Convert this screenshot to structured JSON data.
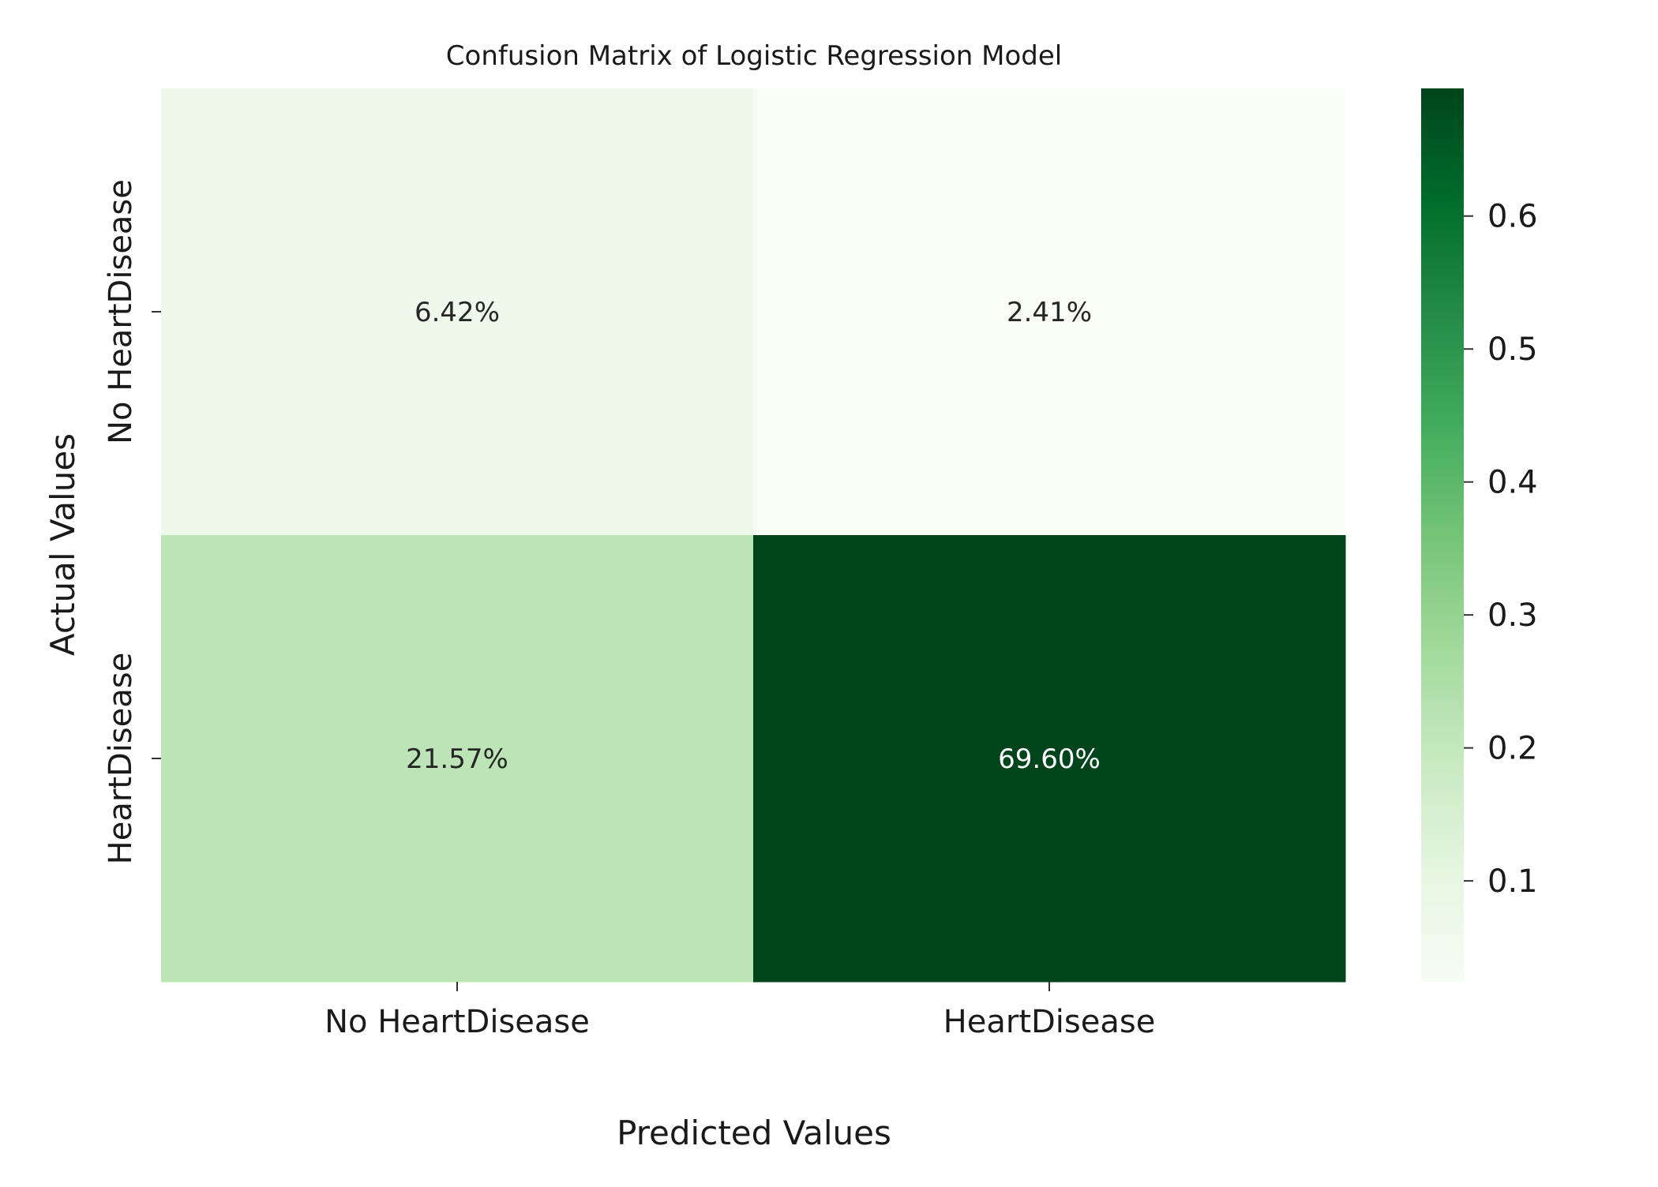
{
  "chart_data": {
    "type": "heatmap",
    "title": "Confusion Matrix of Logistic Regression Model",
    "xlabel": "Predicted Values",
    "ylabel": "Actual Values",
    "x_categories": [
      "No HeartDisease",
      "HeartDisease"
    ],
    "y_categories": [
      "No HeartDisease",
      "HeartDisease"
    ],
    "values": [
      [
        0.0642,
        0.0241
      ],
      [
        0.2157,
        0.696
      ]
    ],
    "cell_labels": [
      [
        "6.42%",
        "2.41%"
      ],
      [
        "21.57%",
        "69.60%"
      ]
    ],
    "colormap": "Greens",
    "colorbar": {
      "range": [
        0.0241,
        0.696
      ],
      "ticks": [
        0.1,
        0.2,
        0.3,
        0.4,
        0.5,
        0.6
      ],
      "tick_labels": [
        "0.1",
        "0.2",
        "0.3",
        "0.4",
        "0.5",
        "0.6"
      ]
    },
    "grid": false
  }
}
